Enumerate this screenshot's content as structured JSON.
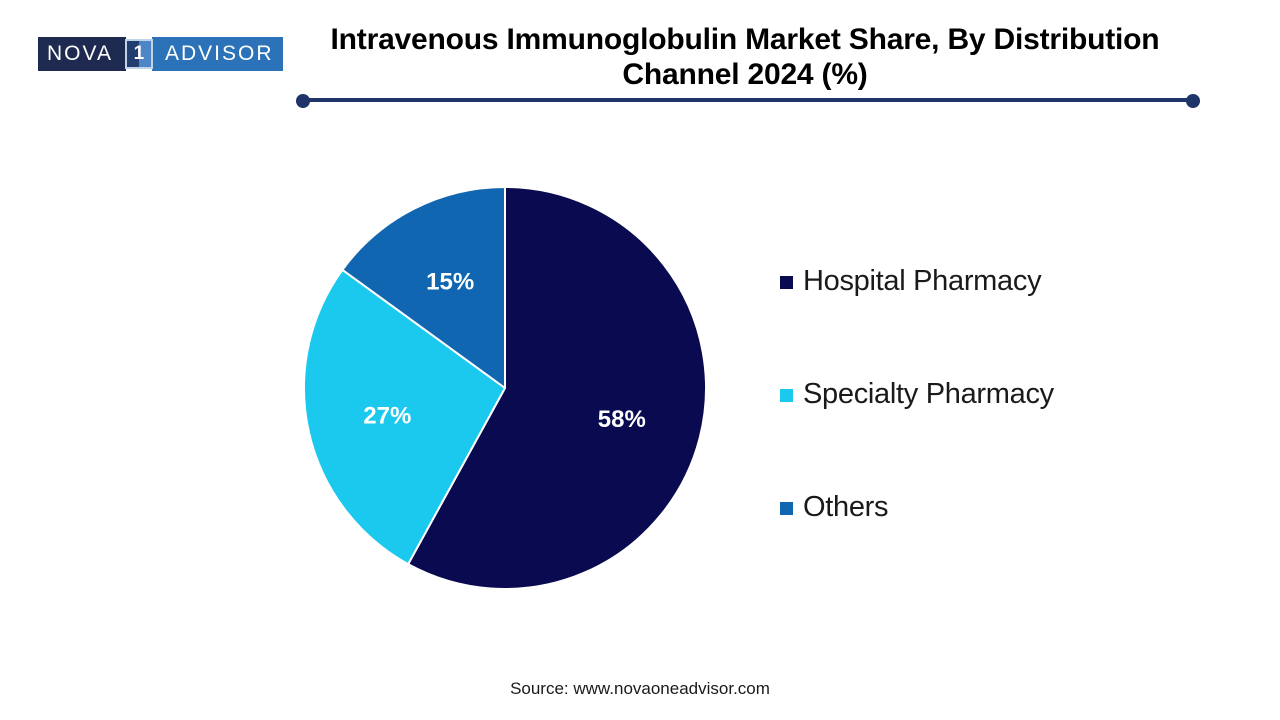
{
  "logo": {
    "left_text": "NOVA",
    "box_text": "1",
    "right_text": "ADVISOR",
    "navy_color": "#1F2A50",
    "blue_color": "#2C72B8"
  },
  "title": {
    "line1": "Intravenous Immunoglobulin Market Share, By Distribution",
    "line2": "Channel 2024 (%)",
    "divider_color": "#1F3468"
  },
  "chart_data": {
    "type": "pie",
    "title": "Intravenous Immunoglobulin Market Share, By Distribution Channel 2024 (%)",
    "categories": [
      "Hospital Pharmacy",
      "Specialty Pharmacy",
      "Others"
    ],
    "values": [
      58,
      27,
      15
    ],
    "data_labels": [
      "58%",
      "27%",
      "15%"
    ],
    "colors": [
      "#0A0A50",
      "#1BC8EE",
      "#1066B0"
    ],
    "start_angle_deg": 0,
    "direction": "clockwise",
    "slice_border_color": "#FFFFFF",
    "label_color": "#FFFFFF",
    "legend_position": "right"
  },
  "legend": {
    "items": [
      {
        "label": "Hospital Pharmacy",
        "color": "#0A0A50"
      },
      {
        "label": "Specialty Pharmacy",
        "color": "#1BC8EE"
      },
      {
        "label": "Others",
        "color": "#1066B0"
      }
    ]
  },
  "source": {
    "text": "Source: www.novaoneadvisor.com"
  }
}
